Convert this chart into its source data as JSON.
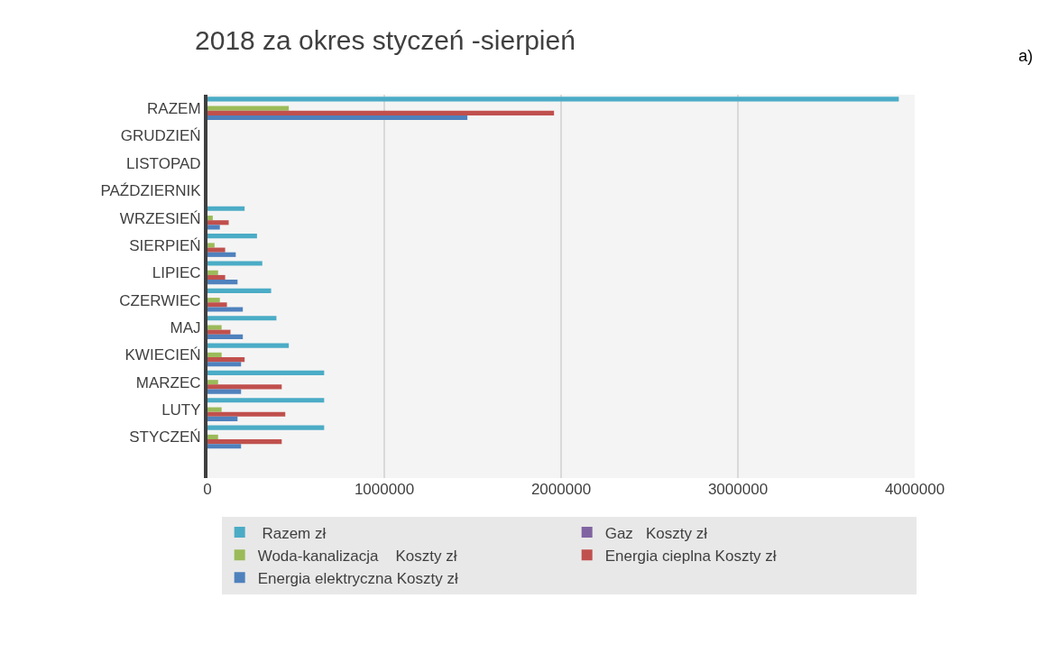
{
  "chart_data": {
    "type": "bar",
    "orientation": "horizontal",
    "title": "2018 za okres styczeń -sierpień",
    "categories": [
      "RAZEM",
      "GRUDZIEŃ",
      "LISTOPAD",
      "PAŹDZIERNIK",
      "WRZESIEŃ",
      "SIERPIEŃ",
      "LIPIEC",
      "CZERWIEC",
      "MAJ",
      "KWIECIEŃ",
      "MARZEC",
      "LUTY",
      "STYCZEŃ",
      null
    ],
    "series": [
      {
        "name": " Razem zł",
        "color": "#4bacc6",
        "values": [
          3910000,
          0,
          0,
          0,
          210000,
          280000,
          310000,
          360000,
          390000,
          460000,
          660000,
          660000,
          660000,
          0
        ]
      },
      {
        "name": "Gaz   Koszty zł",
        "color": "#8064a2",
        "values": [
          0,
          0,
          0,
          0,
          0,
          0,
          0,
          0,
          0,
          0,
          0,
          0,
          0,
          0
        ]
      },
      {
        "name": "Woda-kanalizacja    Koszty zł",
        "color": "#9bbb59",
        "values": [
          460000,
          0,
          0,
          0,
          30000,
          40000,
          60000,
          70000,
          80000,
          80000,
          60000,
          80000,
          60000,
          0
        ]
      },
      {
        "name": "Energia cieplna Koszty zł",
        "color": "#c0504d",
        "values": [
          1960000,
          0,
          0,
          0,
          120000,
          100000,
          100000,
          110000,
          130000,
          210000,
          420000,
          440000,
          420000,
          0
        ]
      },
      {
        "name": "Energia elektryczna Koszty zł",
        "color": "#4f81bd",
        "values": [
          1470000,
          0,
          0,
          0,
          70000,
          160000,
          170000,
          200000,
          200000,
          190000,
          190000,
          170000,
          190000,
          0
        ]
      }
    ],
    "xlim": [
      0,
      4000000
    ],
    "xticks": [
      0,
      1000000,
      2000000,
      3000000,
      4000000
    ],
    "grid": "x",
    "legend": "bottom",
    "annotations": [
      "a)"
    ]
  }
}
